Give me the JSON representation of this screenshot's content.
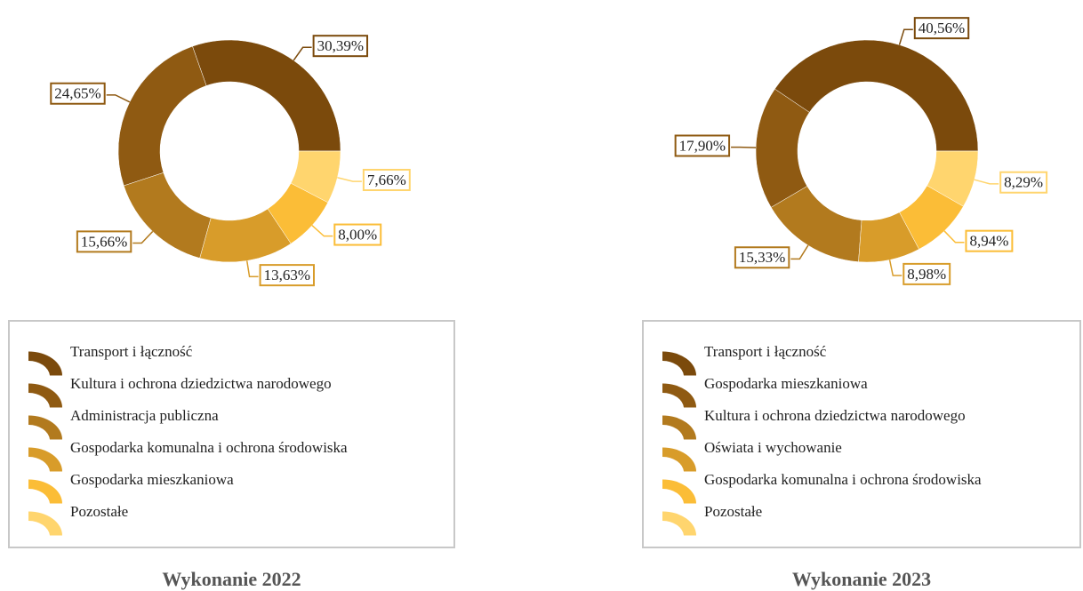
{
  "chart_data": [
    {
      "type": "pie",
      "title": "Wykonanie 2022",
      "categories": [
        "Transport i łączność",
        "Kultura i ochrona dziedzictwa narodowego",
        "Administracja publiczna",
        "Gospodarka komunalna i ochrona środowiska",
        "Gospodarka mieszkaniowa",
        "Pozostałe"
      ],
      "values": [
        30.39,
        24.65,
        15.66,
        13.63,
        8.0,
        7.66
      ],
      "value_labels": [
        "30,39%",
        "24,65%",
        "15,66%",
        "13,63%",
        "8,00%",
        "7,66%"
      ],
      "colors": [
        "#7b4a0c",
        "#8f5a12",
        "#b27a1e",
        "#d89c2a",
        "#fbbd37",
        "#ffd56e"
      ]
    },
    {
      "type": "pie",
      "title": "Wykonanie 2023",
      "categories": [
        "Transport i łączność",
        "Gospodarka mieszkaniowa",
        "Kultura i ochrona dziedzictwa narodowego",
        "Oświata i wychowanie",
        "Gospodarka komunalna i ochrona środowiska",
        "Pozostałe"
      ],
      "values": [
        40.56,
        17.9,
        15.33,
        8.98,
        8.94,
        8.29
      ],
      "value_labels": [
        "40,56%",
        "17,90%",
        "15,33%",
        "8,98%",
        "8,94%",
        "8,29%"
      ],
      "colors": [
        "#7b4a0c",
        "#8f5a12",
        "#b27a1e",
        "#d89c2a",
        "#fbbd37",
        "#ffd56e"
      ]
    }
  ]
}
